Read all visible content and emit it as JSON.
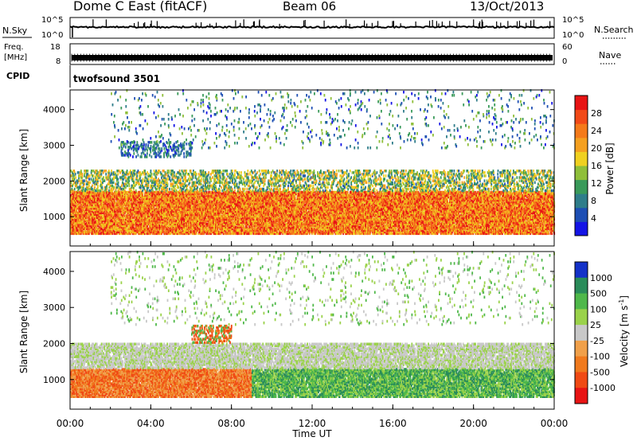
{
  "header": {
    "title": "Dome C East (fitACF)",
    "beam": "Beam 06",
    "date": "13/Oct/2013"
  },
  "noise_panel": {
    "left_label": "N.Sky",
    "left_ticks": [
      "10^5",
      "10^0"
    ],
    "right_ticks": [
      "10^5",
      "10^0"
    ],
    "right_label": "N.Search",
    "right_label_style": "dotted"
  },
  "freq_panel": {
    "left_label_line1": "Freq.",
    "left_label_line2": "[MHz]",
    "left_ticks": [
      "18",
      "8"
    ],
    "right_ticks": [
      "60",
      "0"
    ],
    "right_label": "Nave",
    "right_label_style": "dotted"
  },
  "cpid_panel": {
    "label": "CPID",
    "program": "twofsound 3501"
  },
  "chart_data": [
    {
      "type": "heatmap",
      "panel": "power",
      "ylabel": "Slant Range [km]",
      "y_ticks": [
        "1000",
        "2000",
        "3000",
        "4000"
      ],
      "ylim": [
        180,
        4550
      ],
      "xlim_hours": [
        0,
        24
      ],
      "colorbar": {
        "label": "Power [dB]",
        "ticks": [
          "4",
          "8",
          "12",
          "16",
          "20",
          "24",
          "28"
        ],
        "range": [
          0,
          32
        ],
        "colors": [
          "#1414e6",
          "#1e4fb4",
          "#2f7d8a",
          "#3a9a5a",
          "#8fbf3a",
          "#f0d020",
          "#f5a020",
          "#f57a1a",
          "#f24a18",
          "#e81414"
        ]
      },
      "bands": [
        {
          "range_km": [
            500,
            1700
          ],
          "level_db": [
            16,
            32
          ],
          "hours": [
            0,
            24
          ],
          "density": 0.92
        },
        {
          "range_km": [
            1700,
            2300
          ],
          "level_db": [
            6,
            22
          ],
          "hours": [
            0,
            24
          ],
          "density": 0.45
        },
        {
          "range_km": [
            2650,
            3100
          ],
          "level_db": [
            2,
            12
          ],
          "hours": [
            2.5,
            6
          ],
          "density": 0.35
        },
        {
          "range_km": [
            2900,
            4550
          ],
          "level_db": [
            2,
            16
          ],
          "hours": [
            2,
            24
          ],
          "density": 0.05
        }
      ]
    },
    {
      "type": "heatmap",
      "panel": "velocity",
      "ylabel": "Slant Range [km]",
      "y_ticks": [
        "1000",
        "2000",
        "3000",
        "4000"
      ],
      "ylim": [
        180,
        4550
      ],
      "xlim_hours": [
        0,
        24
      ],
      "colorbar": {
        "label": "Velocity [m s^-1]",
        "ticks": [
          "1000",
          "500",
          "100",
          "25",
          "-25",
          "-100",
          "-500",
          "-1000"
        ],
        "colors": [
          "#1432c8",
          "#2a8c5a",
          "#4fb84a",
          "#9ad24a",
          "#c8c8c8",
          "#f0a04a",
          "#f07a1e",
          "#f04a14",
          "#e81414"
        ]
      },
      "bands": [
        {
          "range_km": [
            500,
            1300
          ],
          "velocity": "-100 to -500",
          "hours": [
            0,
            9
          ],
          "density": 0.9
        },
        {
          "range_km": [
            500,
            1300
          ],
          "velocity": "25 to 500",
          "hours": [
            9,
            24
          ],
          "density": 0.85
        },
        {
          "range_km": [
            1300,
            2000
          ],
          "velocity": "-25 to 25",
          "hours": [
            0,
            24
          ],
          "density": 0.75
        },
        {
          "range_km": [
            2000,
            2500
          ],
          "velocity": "-100 to 100",
          "hours": [
            6,
            8
          ],
          "density": 0.5
        },
        {
          "range_km": [
            2500,
            4550
          ],
          "velocity": "-25 to 100",
          "hours": [
            2,
            24
          ],
          "density": 0.05
        }
      ]
    }
  ],
  "time_axis": {
    "label": "Time UT",
    "ticks": [
      "00:00",
      "04:00",
      "08:00",
      "12:00",
      "16:00",
      "20:00",
      "00:00"
    ]
  }
}
